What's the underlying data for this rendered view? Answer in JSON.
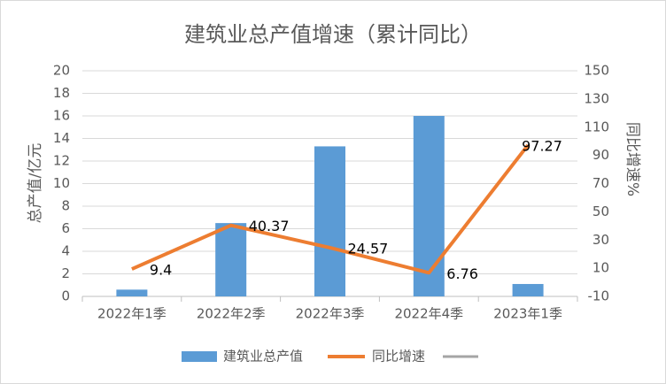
{
  "chart_data": {
    "type": "bar_line",
    "title": "建筑业总产值增速（累计同比）",
    "y_label": "总产值/亿元",
    "y2_label": "同比增速%",
    "categories": [
      "2022年1季",
      "2022年2季",
      "2022年3季",
      "2022年4季",
      "2023年1季"
    ],
    "series": [
      {
        "name": "建筑业总产值",
        "type": "bar",
        "color": "#5b9bd5",
        "values": [
          0.6,
          6.5,
          13.3,
          16.0,
          1.1
        ]
      },
      {
        "name": "同比增速",
        "type": "line",
        "axis": "y2",
        "color": "#ed7d31",
        "values": [
          9.4,
          40.37,
          24.57,
          6.76,
          97.27
        ]
      }
    ],
    "ylim": [
      0,
      20
    ],
    "yticks": [
      0,
      2,
      4,
      6,
      8,
      10,
      12,
      14,
      16,
      18,
      20
    ],
    "y2lim": [
      -10,
      150
    ],
    "y2ticks": [
      -10,
      10,
      30,
      50,
      70,
      90,
      110,
      130,
      150
    ],
    "grid": true
  }
}
